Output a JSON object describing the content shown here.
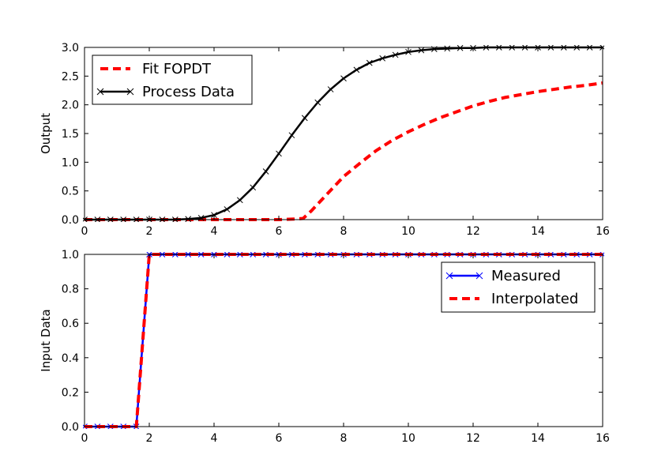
{
  "chart_data": [
    {
      "type": "line",
      "title": "",
      "xlabel": "",
      "ylabel": "Output",
      "xlim": [
        0,
        16
      ],
      "ylim": [
        0,
        3.0
      ],
      "xticks": [
        "0",
        "2",
        "4",
        "6",
        "8",
        "10",
        "12",
        "14",
        "16"
      ],
      "yticks": [
        "0.0",
        "0.5",
        "1.0",
        "1.5",
        "2.0",
        "2.5",
        "3.0"
      ],
      "grid": false,
      "legend": "top-left",
      "series": [
        {
          "name": "Fit FOPDT",
          "color": "#ff0000",
          "style": "dashed",
          "marker": "none",
          "x": [
            0,
            1,
            2,
            3,
            4,
            5,
            6,
            6.5,
            6.75,
            7,
            7.5,
            8,
            8.5,
            9,
            9.5,
            10,
            10.5,
            11,
            11.5,
            12,
            12.5,
            13,
            13.5,
            14,
            14.5,
            15,
            15.5,
            16
          ],
          "y": [
            0,
            0,
            0,
            0,
            0,
            0,
            0,
            0.01,
            0.02,
            0.15,
            0.45,
            0.75,
            0.98,
            1.2,
            1.38,
            1.53,
            1.66,
            1.78,
            1.88,
            1.98,
            2.06,
            2.13,
            2.18,
            2.23,
            2.27,
            2.31,
            2.34,
            2.38
          ]
        },
        {
          "name": "Process Data",
          "color": "#000000",
          "style": "solid",
          "marker": "x",
          "x": [
            0,
            0.4,
            0.8,
            1.2,
            1.6,
            2,
            2.4,
            2.8,
            3.2,
            3.6,
            4,
            4.4,
            4.8,
            5.2,
            5.6,
            6,
            6.4,
            6.8,
            7.2,
            7.6,
            8,
            8.4,
            8.8,
            9.2,
            9.6,
            10,
            10.4,
            10.8,
            11.2,
            11.6,
            12,
            12.4,
            12.8,
            13.2,
            13.6,
            14,
            14.4,
            14.8,
            15.2,
            15.6,
            16
          ],
          "y": [
            0,
            0,
            0,
            0,
            0,
            0,
            0,
            0,
            0.01,
            0.03,
            0.08,
            0.18,
            0.34,
            0.56,
            0.84,
            1.15,
            1.47,
            1.77,
            2.04,
            2.27,
            2.46,
            2.61,
            2.73,
            2.81,
            2.87,
            2.92,
            2.95,
            2.97,
            2.98,
            2.99,
            2.99,
            3.0,
            3.0,
            3.0,
            3.0,
            3.0,
            3.0,
            3.0,
            3.0,
            3.0,
            3.0
          ]
        }
      ]
    },
    {
      "type": "line",
      "title": "",
      "xlabel": "",
      "ylabel": "Input Data",
      "xlim": [
        0,
        16
      ],
      "ylim": [
        0,
        1.0
      ],
      "xticks": [
        "0",
        "2",
        "4",
        "6",
        "8",
        "10",
        "12",
        "14",
        "16"
      ],
      "yticks": [
        "0.0",
        "0.2",
        "0.4",
        "0.6",
        "0.8",
        "1.0"
      ],
      "grid": false,
      "legend": "top-right",
      "series": [
        {
          "name": "Measured",
          "color": "#0000ff",
          "style": "solid",
          "marker": "x",
          "x": [
            0,
            0.4,
            0.8,
            1.2,
            1.6,
            2,
            2.4,
            2.8,
            3.2,
            3.6,
            4,
            4.4,
            4.8,
            5.2,
            5.6,
            6,
            6.4,
            6.8,
            7.2,
            7.6,
            8,
            8.4,
            8.8,
            9.2,
            9.6,
            10,
            10.4,
            10.8,
            11.2,
            11.6,
            12,
            12.4,
            12.8,
            13.2,
            13.6,
            14,
            14.4,
            14.8,
            15.2,
            15.6,
            16
          ],
          "y": [
            0,
            0,
            0,
            0,
            0,
            1,
            1,
            1,
            1,
            1,
            1,
            1,
            1,
            1,
            1,
            1,
            1,
            1,
            1,
            1,
            1,
            1,
            1,
            1,
            1,
            1,
            1,
            1,
            1,
            1,
            1,
            1,
            1,
            1,
            1,
            1,
            1,
            1,
            1,
            1,
            1
          ]
        },
        {
          "name": "Interpolated",
          "color": "#ff0000",
          "style": "dashed",
          "marker": "none",
          "x": [
            0,
            1.6,
            2,
            16
          ],
          "y": [
            0,
            0,
            1,
            1
          ]
        }
      ]
    }
  ]
}
